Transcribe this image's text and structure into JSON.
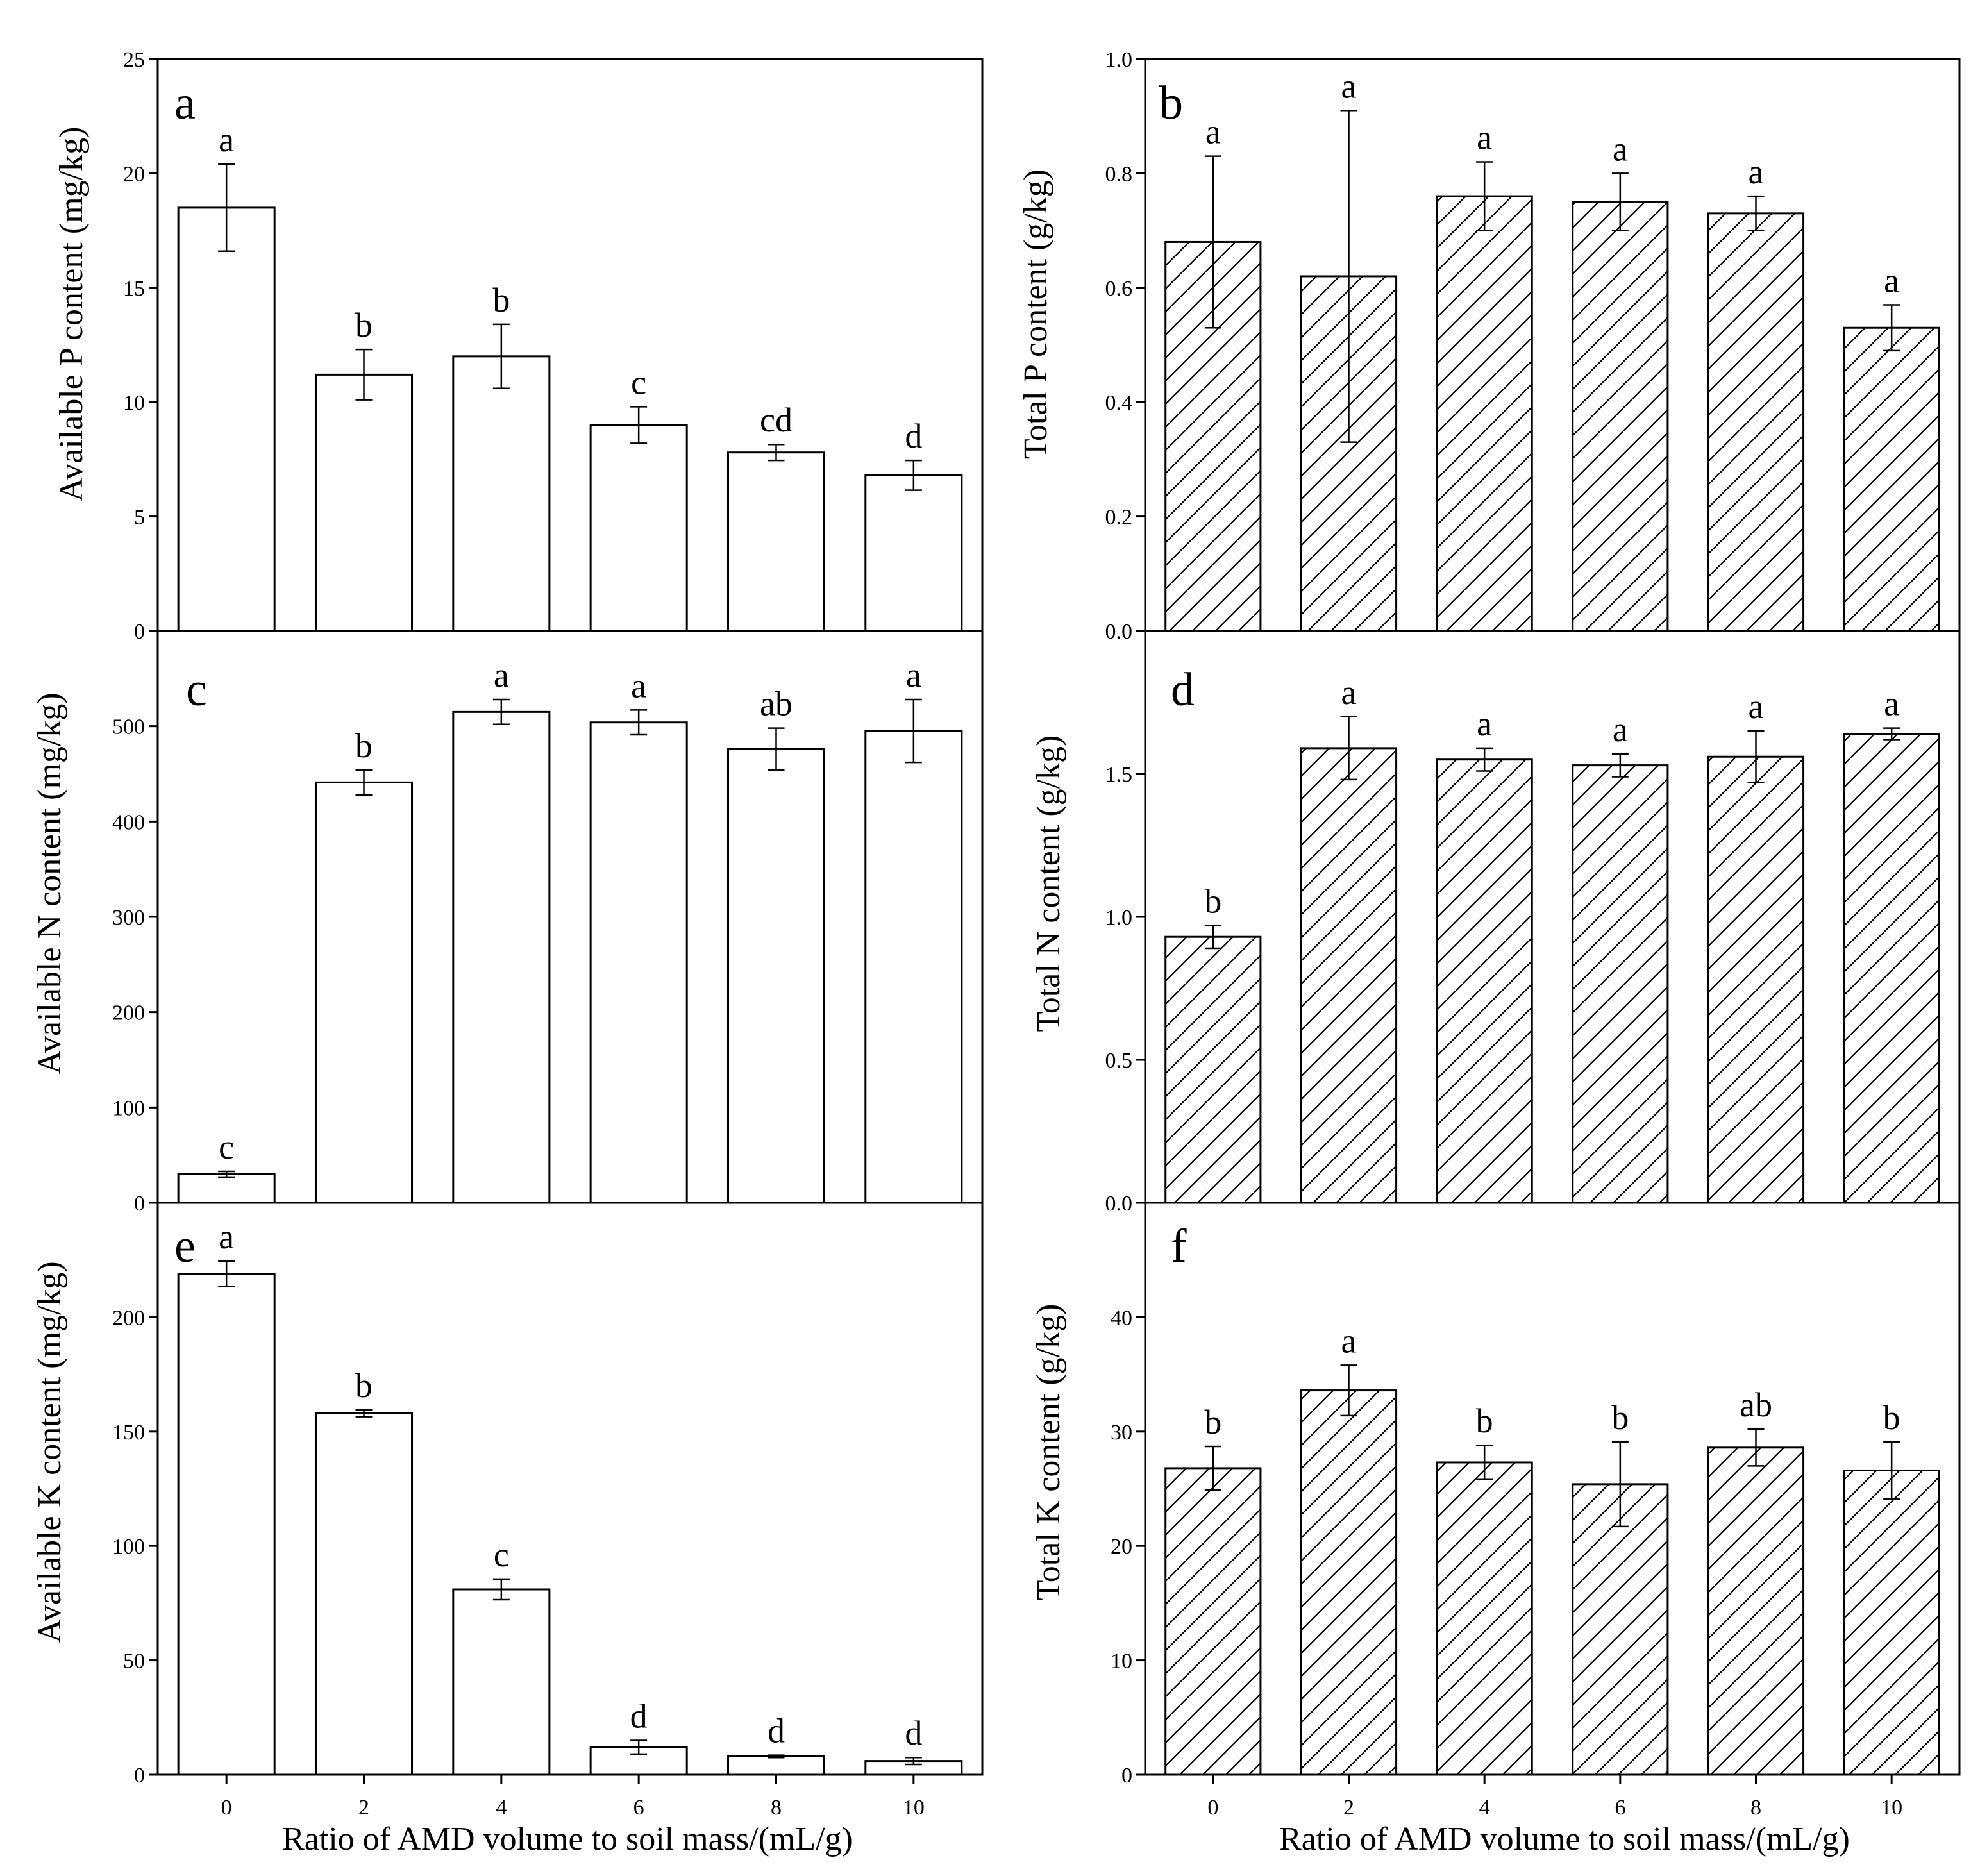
{
  "chart_data": [
    {
      "id": "a",
      "panel_label": "a",
      "type": "bar",
      "fill": "open",
      "categories": [
        "0",
        "2",
        "4",
        "6",
        "8",
        "10"
      ],
      "values": [
        18.5,
        11.2,
        12.0,
        9.0,
        7.8,
        6.8
      ],
      "errors": [
        1.9,
        1.1,
        1.4,
        0.8,
        0.35,
        0.65
      ],
      "significance": [
        "a",
        "b",
        "b",
        "c",
        "cd",
        "d"
      ],
      "ylabel": "Available P content (mg/kg)",
      "ylim": [
        0,
        25
      ],
      "yticks": [
        0,
        5,
        10,
        15,
        20,
        25
      ],
      "ytick_labels": [
        "0",
        "5",
        "10",
        "15",
        "20",
        "25"
      ],
      "xlabel": "",
      "show_xticks": false
    },
    {
      "id": "b",
      "panel_label": "b",
      "type": "bar",
      "fill": "hatched",
      "categories": [
        "0",
        "2",
        "4",
        "6",
        "8",
        "10"
      ],
      "values": [
        0.68,
        0.62,
        0.76,
        0.75,
        0.73,
        0.53
      ],
      "errors": [
        0.15,
        0.29,
        0.06,
        0.05,
        0.03,
        0.04
      ],
      "significance": [
        "a",
        "a",
        "a",
        "a",
        "a",
        "a"
      ],
      "ylabel": "Total P content (g/kg)",
      "ylim": [
        0,
        1.0
      ],
      "yticks": [
        0,
        0.2,
        0.4,
        0.6,
        0.8,
        1.0
      ],
      "ytick_labels": [
        "0.0",
        "0.2",
        "0.4",
        "0.6",
        "0.8",
        "1.0"
      ],
      "xlabel": "",
      "show_xticks": false
    },
    {
      "id": "c",
      "panel_label": "c",
      "type": "bar",
      "fill": "open",
      "categories": [
        "0",
        "2",
        "4",
        "6",
        "8",
        "10"
      ],
      "values": [
        30,
        441,
        515,
        504,
        476,
        495
      ],
      "errors": [
        3,
        13,
        13,
        13,
        22,
        33
      ],
      "significance": [
        "c",
        "b",
        "a",
        "a",
        "ab",
        "a"
      ],
      "ylabel": "Available N content (mg/kg)",
      "ylim": [
        0,
        600
      ],
      "yticks": [
        0,
        100,
        200,
        300,
        400,
        500
      ],
      "ytick_labels": [
        "0",
        "100",
        "200",
        "300",
        "400",
        "500"
      ],
      "xlabel": "",
      "show_xticks": false
    },
    {
      "id": "d",
      "panel_label": "d",
      "type": "bar",
      "fill": "hatched",
      "categories": [
        "0",
        "2",
        "4",
        "6",
        "8",
        "10"
      ],
      "values": [
        0.93,
        1.59,
        1.55,
        1.53,
        1.56,
        1.64
      ],
      "errors": [
        0.04,
        0.11,
        0.04,
        0.04,
        0.09,
        0.02
      ],
      "significance": [
        "b",
        "a",
        "a",
        "a",
        "a",
        "a"
      ],
      "ylabel": "Total N content (g/kg)",
      "ylim": [
        0,
        2.0
      ],
      "yticks": [
        0,
        0.5,
        1.0,
        1.5
      ],
      "ytick_labels": [
        "0.0",
        "0.5",
        "1.0",
        "1.5"
      ],
      "xlabel": "",
      "show_xticks": false
    },
    {
      "id": "e",
      "panel_label": "e",
      "type": "bar",
      "fill": "open",
      "categories": [
        "0",
        "2",
        "4",
        "6",
        "8",
        "10"
      ],
      "values": [
        219,
        158,
        81,
        12,
        8,
        6
      ],
      "errors": [
        5.5,
        1.5,
        4.5,
        3,
        0.5,
        1.5
      ],
      "significance": [
        "a",
        "b",
        "c",
        "d",
        "d",
        "d"
      ],
      "ylabel": "Available K content (mg/kg)",
      "ylim": [
        0,
        250
      ],
      "yticks": [
        0,
        50,
        100,
        150,
        200
      ],
      "ytick_labels": [
        "0",
        "50",
        "100",
        "150",
        "200"
      ],
      "xlabel": "Ratio of AMD volume to soil mass/(mL/g)",
      "show_xticks": true
    },
    {
      "id": "f",
      "panel_label": "f",
      "type": "bar",
      "fill": "hatched",
      "categories": [
        "0",
        "2",
        "4",
        "6",
        "8",
        "10"
      ],
      "values": [
        26.8,
        33.6,
        27.3,
        25.4,
        28.6,
        26.6
      ],
      "errors": [
        1.9,
        2.2,
        1.5,
        3.7,
        1.6,
        2.5
      ],
      "significance": [
        "b",
        "a",
        "b",
        "b",
        "ab",
        "b"
      ],
      "ylabel": "Total K content (g/kg)",
      "ylim": [
        0,
        50
      ],
      "yticks": [
        0,
        10,
        20,
        30,
        40
      ],
      "ytick_labels": [
        "0",
        "10",
        "20",
        "30",
        "40"
      ],
      "xlabel": "Ratio of AMD volume to soil mass/(mL/g)",
      "show_xticks": true
    }
  ],
  "style": {
    "bar_fill": "#ffffff",
    "stroke": "#000000",
    "hatch": "#000000"
  }
}
